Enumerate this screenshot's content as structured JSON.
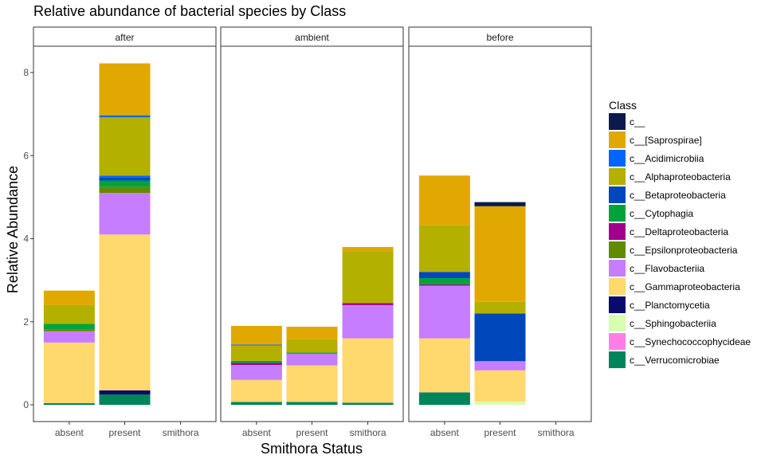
{
  "chart_data": {
    "type": "bar",
    "stacked": true,
    "title": "Relative abundance of bacterial species by Class",
    "xlabel": "Smithora Status",
    "ylabel": "Relative Abundance",
    "ylim": [
      -0.5,
      8.6
    ],
    "yticks": [
      0,
      2,
      4,
      6,
      8
    ],
    "categories": [
      "absent",
      "present",
      "smithora"
    ],
    "facets": [
      "after",
      "ambient",
      "before"
    ],
    "grid": false,
    "legend": {
      "title": "Class",
      "position": "right",
      "entries": [
        {
          "name": "c__",
          "color": "#0b1a4d"
        },
        {
          "name": "c__[Saprospirae]",
          "color": "#e0a800"
        },
        {
          "name": "c__Acidimicrobiia",
          "color": "#0066ff"
        },
        {
          "name": "c__Alphaproteobacteria",
          "color": "#b3b000"
        },
        {
          "name": "c__Betaproteobacteria",
          "color": "#0047bb"
        },
        {
          "name": "c__Cytophagia",
          "color": "#00a23c"
        },
        {
          "name": "c__Deltaproteobacteria",
          "color": "#a0008c"
        },
        {
          "name": "c__Epsilonproteobacteria",
          "color": "#628a00"
        },
        {
          "name": "c__Flavobacteriia",
          "color": "#c77dff"
        },
        {
          "name": "c__Gammaproteobacteria",
          "color": "#ffd86e"
        },
        {
          "name": "c__Planctomycetia",
          "color": "#0a0a6b"
        },
        {
          "name": "c__Sphingobacteriia",
          "color": "#d6ffb0"
        },
        {
          "name": "c__Synechococcophycideae",
          "color": "#ff7ee6"
        },
        {
          "name": "c__Verrucomicrobiae",
          "color": "#00845a"
        }
      ]
    },
    "panels": [
      {
        "facet": "after",
        "bars": [
          {
            "category": "absent",
            "segments": [
              {
                "class": "c__Verrucomicrobiae",
                "value": 0.04
              },
              {
                "class": "c__Gammaproteobacteria",
                "value": 1.46
              },
              {
                "class": "c__Flavobacteriia",
                "value": 0.27
              },
              {
                "class": "c__Epsilonproteobacteria",
                "value": 0.05
              },
              {
                "class": "c__Cytophagia",
                "value": 0.13
              },
              {
                "class": "c__Alphaproteobacteria",
                "value": 0.45
              },
              {
                "class": "c__[Saprospirae]",
                "value": 0.35
              }
            ]
          },
          {
            "category": "present",
            "segments": [
              {
                "class": "c__Verrucomicrobiae",
                "value": 0.25
              },
              {
                "class": "c__Planctomycetia",
                "value": 0.1
              },
              {
                "class": "c__Gammaproteobacteria",
                "value": 3.75
              },
              {
                "class": "c__Flavobacteriia",
                "value": 1.0
              },
              {
                "class": "c__Epsilonproteobacteria",
                "value": 0.15
              },
              {
                "class": "c__Cytophagia",
                "value": 0.15
              },
              {
                "class": "c__Betaproteobacteria",
                "value": 0.07
              },
              {
                "class": "c__Acidimicrobiia",
                "value": 0.05
              },
              {
                "class": "c__Alphaproteobacteria",
                "value": 1.4
              },
              {
                "class": "c__Acidimicrobiia",
                "value": 0.05
              },
              {
                "class": "c__[Saprospirae]",
                "value": 1.25
              }
            ]
          },
          {
            "category": "smithora",
            "segments": []
          }
        ]
      },
      {
        "facet": "ambient",
        "bars": [
          {
            "category": "absent",
            "segments": [
              {
                "class": "c__Verrucomicrobiae",
                "value": 0.07
              },
              {
                "class": "c__Gammaproteobacteria",
                "value": 0.53
              },
              {
                "class": "c__Flavobacteriia",
                "value": 0.36
              },
              {
                "class": "c__Deltaproteobacteria",
                "value": 0.05
              },
              {
                "class": "c__Cytophagia",
                "value": 0.05
              },
              {
                "class": "c__Alphaproteobacteria",
                "value": 0.37
              },
              {
                "class": "c__Acidimicrobiia",
                "value": 0.02
              },
              {
                "class": "c__[Saprospirae]",
                "value": 0.45
              }
            ]
          },
          {
            "category": "present",
            "segments": [
              {
                "class": "c__Verrucomicrobiae",
                "value": 0.07
              },
              {
                "class": "c__Gammaproteobacteria",
                "value": 0.88
              },
              {
                "class": "c__Flavobacteriia",
                "value": 0.28
              },
              {
                "class": "c__Cytophagia",
                "value": 0.03
              },
              {
                "class": "c__Alphaproteobacteria",
                "value": 0.32
              },
              {
                "class": "c__[Saprospirae]",
                "value": 0.3
              }
            ]
          },
          {
            "category": "smithora",
            "segments": [
              {
                "class": "c__Verrucomicrobiae",
                "value": 0.05
              },
              {
                "class": "c__Gammaproteobacteria",
                "value": 1.55
              },
              {
                "class": "c__Flavobacteriia",
                "value": 0.8
              },
              {
                "class": "c__Deltaproteobacteria",
                "value": 0.05
              },
              {
                "class": "c__Alphaproteobacteria",
                "value": 1.25
              },
              {
                "class": "c__[Saprospirae]",
                "value": 0.1
              }
            ]
          }
        ]
      },
      {
        "facet": "before",
        "bars": [
          {
            "category": "absent",
            "segments": [
              {
                "class": "c__Verrucomicrobiae",
                "value": 0.3
              },
              {
                "class": "c__Gammaproteobacteria",
                "value": 1.3
              },
              {
                "class": "c__Flavobacteriia",
                "value": 1.27
              },
              {
                "class": "c__Deltaproteobacteria",
                "value": 0.03
              },
              {
                "class": "c__Cytophagia",
                "value": 0.15
              },
              {
                "class": "c__Betaproteobacteria",
                "value": 0.15
              },
              {
                "class": "c__Alphaproteobacteria",
                "value": 1.12
              },
              {
                "class": "c__[Saprospirae]",
                "value": 1.2
              }
            ]
          },
          {
            "category": "present",
            "segments": [
              {
                "class": "c__Sphingobacteriia",
                "value": 0.08
              },
              {
                "class": "c__Gammaproteobacteria",
                "value": 0.75
              },
              {
                "class": "c__Flavobacteriia",
                "value": 0.22
              },
              {
                "class": "c__Betaproteobacteria",
                "value": 1.15
              },
              {
                "class": "c__Alphaproteobacteria",
                "value": 0.28
              },
              {
                "class": "c__[Saprospirae]",
                "value": 2.3
              },
              {
                "class": "c__",
                "value": 0.1
              }
            ]
          },
          {
            "category": "smithora",
            "segments": []
          }
        ]
      }
    ]
  }
}
